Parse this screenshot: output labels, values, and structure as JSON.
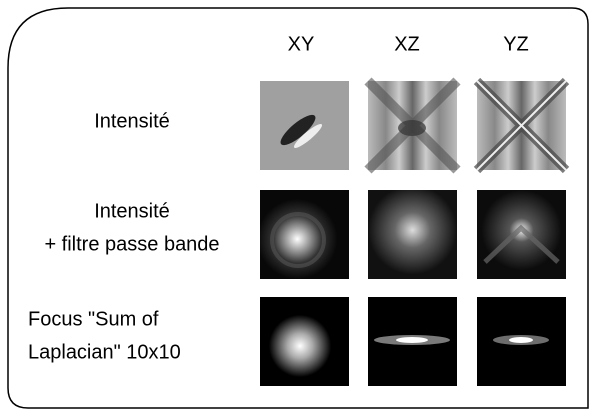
{
  "columns": [
    "XY",
    "XZ",
    "YZ"
  ],
  "rows": [
    {
      "label_lines": [
        "Intensité"
      ]
    },
    {
      "label_lines": [
        "Intensité",
        "+ filtre passe bande"
      ]
    },
    {
      "label_lines": [
        "Focus \"Sum of",
        "Laplacian\" 10x10"
      ]
    }
  ]
}
